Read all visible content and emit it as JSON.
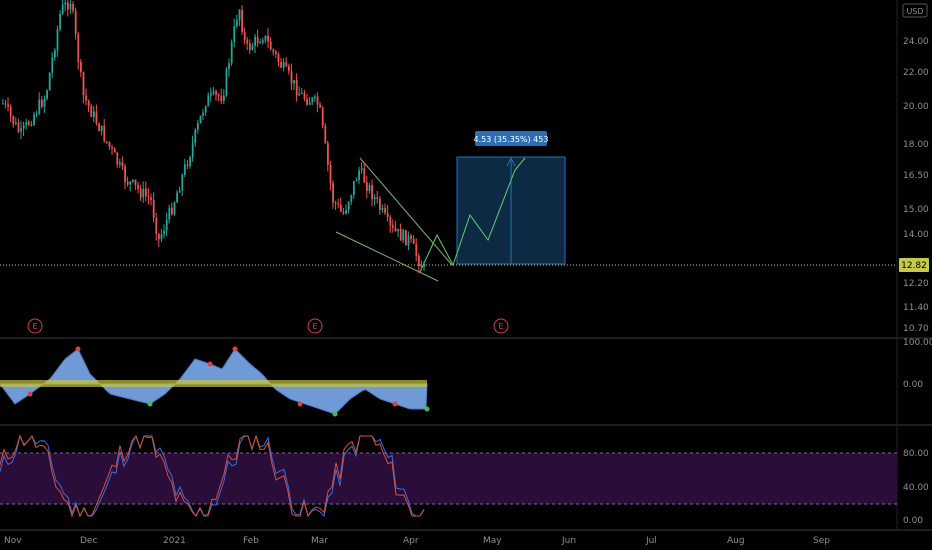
{
  "colors": {
    "background": "#000000",
    "up": "#26a69a",
    "down": "#ef5350",
    "pane_divider": "#3a3a3a",
    "axis_text": "#8a8e99",
    "price_line": "#c8c84a",
    "projection_fill": "#0d2a45",
    "projection_border": "#2a6fb5",
    "projection_label_bg": "#2a6fb5",
    "wedge": "#7fb26a",
    "forecast_path": "#57d46b",
    "osc_fill": "#6f9ad6",
    "osc_band": "#c9c43a",
    "stoch_band": "#2b0d3a",
    "stoch_k": "#3a6fd8",
    "stoch_d": "#d9503a"
  },
  "header": {
    "currency": "USD"
  },
  "price_axis": {
    "ticks": [
      "24.00",
      "22.00",
      "20.00",
      "18.00",
      "16.50",
      "15.00",
      "14.00",
      "12.20",
      "11.40",
      "10.70"
    ]
  },
  "current_price_label": "12.82",
  "projection": {
    "label": "4.53 (35.35%) 453"
  },
  "earnings": {
    "marker": "E",
    "count": 3
  },
  "oscillator_axis": {
    "ticks": [
      "100.00",
      "0.00"
    ]
  },
  "stoch_axis": {
    "ticks": [
      "80.00",
      "40.00",
      "0.00"
    ]
  },
  "time_axis": {
    "labels": [
      "Nov",
      "Dec",
      "2021",
      "Feb",
      "Mar",
      "Apr",
      "May",
      "Jun",
      "Jul",
      "Aug",
      "Sep"
    ]
  },
  "chart_data": {
    "type": "candlestick",
    "x": [
      "Nov",
      "Dec",
      "2021",
      "Feb",
      "Mar",
      "Apr"
    ],
    "price_close_approx": [
      20.5,
      17.2,
      19.8,
      24.0,
      15.5,
      12.82
    ],
    "current_price": 12.82,
    "projected_move": 4.53,
    "projected_move_percent": 35.35
  }
}
